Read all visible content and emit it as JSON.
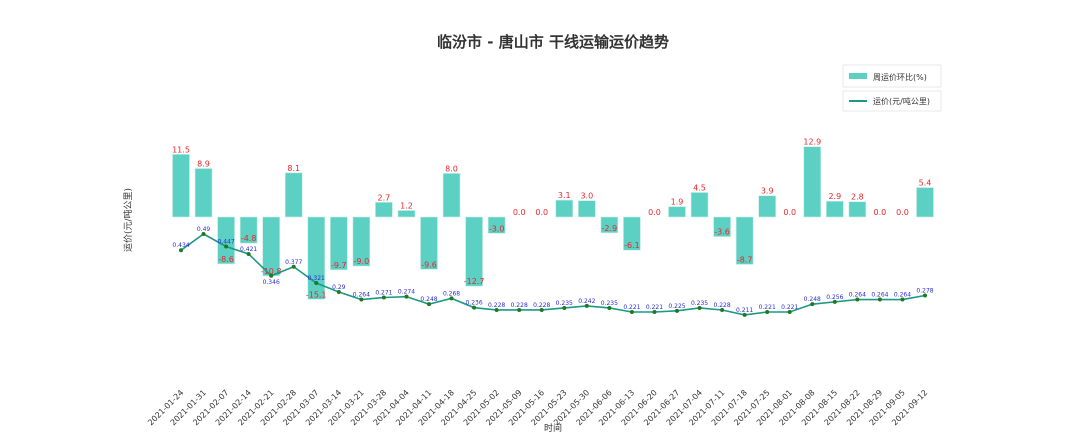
{
  "chart_data": {
    "type": "bar+line",
    "title": "临汾市 - 唐山市 干线运输运价趋势",
    "xlabel": "时间",
    "ylabel": "运价(元/吨公里)",
    "legend": {
      "placement": "top-right",
      "entries": [
        "周运价环比(%)",
        "运价(元/吨公里)"
      ]
    },
    "colors": {
      "bar": "#5cd0c2",
      "line": "#1a9a85",
      "marker": "#1e7a1e",
      "bar_label": "#e8262a",
      "point_label": "#2b2bd8"
    },
    "categories": [
      "2021-01-24",
      "2021-01-31",
      "2021-02-07",
      "2021-02-14",
      "2021-02-21",
      "2021-02-28",
      "2021-03-07",
      "2021-03-14",
      "2021-03-21",
      "2021-03-28",
      "2021-04-04",
      "2021-04-11",
      "2021-04-18",
      "2021-04-25",
      "2021-05-02",
      "2021-05-09",
      "2021-05-16",
      "2021-05-23",
      "2021-05-30",
      "2021-06-06",
      "2021-06-13",
      "2021-06-20",
      "2021-06-27",
      "2021-07-04",
      "2021-07-11",
      "2021-07-18",
      "2021-07-25",
      "2021-08-01",
      "2021-08-08",
      "2021-08-15",
      "2021-08-22",
      "2021-08-29",
      "2021-09-05",
      "2021-09-12"
    ],
    "series": [
      {
        "name": "周运价环比(%)",
        "type": "bar",
        "values": [
          11.5,
          8.9,
          -8.6,
          -4.8,
          -10.8,
          8.1,
          -15.1,
          -9.7,
          -9.0,
          2.7,
          1.2,
          -9.6,
          8.0,
          -12.7,
          -3.0,
          0.0,
          0.0,
          3.1,
          3.0,
          -2.9,
          -6.1,
          0.0,
          1.9,
          4.5,
          -3.6,
          -8.7,
          3.9,
          0.0,
          12.9,
          2.9,
          2.8,
          0.0,
          0.0,
          5.4
        ]
      },
      {
        "name": "运价(元/吨公里)",
        "type": "line",
        "values": [
          0.434,
          0.49,
          0.447,
          0.421,
          0.346,
          0.377,
          0.321,
          0.29,
          0.264,
          0.271,
          0.274,
          0.248,
          0.268,
          0.236,
          0.228,
          0.228,
          0.228,
          0.235,
          0.242,
          0.235,
          0.221,
          0.221,
          0.225,
          0.235,
          0.228,
          0.211,
          0.221,
          0.221,
          0.248,
          0.256,
          0.264,
          0.264,
          0.264,
          0.278
        ]
      }
    ]
  }
}
